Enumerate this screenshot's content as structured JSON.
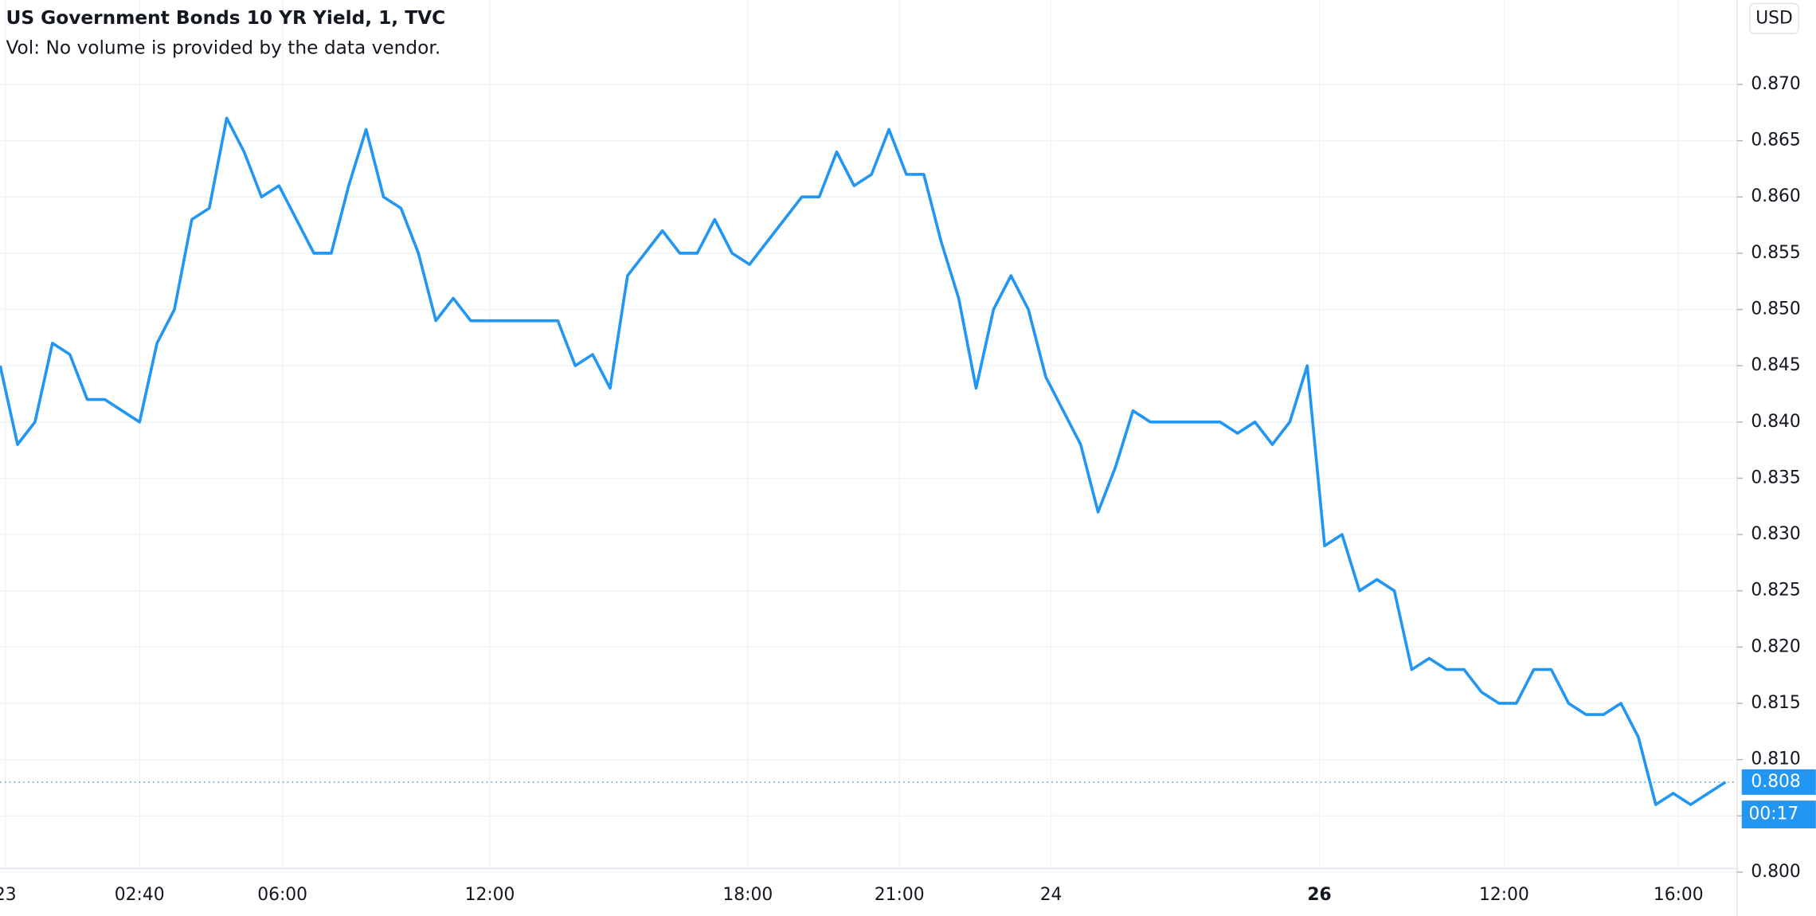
{
  "chart_data": {
    "type": "line",
    "title": "US Government Bonds 10 YR Yield, 1, TVC",
    "subtitle": "Vol: No volume is provided by the data vendor.",
    "currency": "USD",
    "series": [
      {
        "color": "#2196f3",
        "values": [
          0.845,
          0.838,
          0.84,
          0.847,
          0.846,
          0.842,
          0.842,
          0.841,
          0.84,
          0.847,
          0.85,
          0.858,
          0.859,
          0.867,
          0.864,
          0.86,
          0.861,
          0.858,
          0.855,
          0.855,
          0.861,
          0.866,
          0.86,
          0.859,
          0.855,
          0.849,
          0.851,
          0.849,
          0.849,
          0.849,
          0.849,
          0.849,
          0.849,
          0.845,
          0.846,
          0.843,
          0.853,
          0.855,
          0.857,
          0.855,
          0.855,
          0.858,
          0.855,
          0.854,
          0.856,
          0.858,
          0.86,
          0.86,
          0.864,
          0.861,
          0.862,
          0.866,
          0.862,
          0.862,
          0.856,
          0.851,
          0.843,
          0.85,
          0.853,
          0.85,
          0.844,
          0.841,
          0.838,
          0.832,
          0.836,
          0.841,
          0.84,
          0.84,
          0.84,
          0.84,
          0.84,
          0.839,
          0.84,
          0.838,
          0.84,
          0.845,
          0.829,
          0.83,
          0.825,
          0.826,
          0.825,
          0.818,
          0.819,
          0.818,
          0.818,
          0.816,
          0.815,
          0.815,
          0.818,
          0.818,
          0.815,
          0.814,
          0.814,
          0.815,
          0.812,
          0.806,
          0.807,
          0.806,
          0.807,
          0.808
        ]
      }
    ],
    "last_price": {
      "value": 0.808,
      "label": "0.808"
    },
    "countdown": "00:17",
    "xlim": [
      0,
      100
    ],
    "xticks": [
      {
        "value": 0.3,
        "label": "23"
      },
      {
        "value": 8,
        "label": "02:40"
      },
      {
        "value": 16.2,
        "label": "06:00"
      },
      {
        "value": 28.1,
        "label": "12:00"
      },
      {
        "value": 42.9,
        "label": "18:00"
      },
      {
        "value": 51.6,
        "label": "21:00"
      },
      {
        "value": 60.3,
        "label": "24"
      },
      {
        "value": 75.7,
        "label": "26"
      },
      {
        "value": 86.3,
        "label": "12:00"
      },
      {
        "value": 96.3,
        "label": "16:00"
      }
    ],
    "ylim": [
      0.7961,
      0.8775
    ],
    "yticks": [
      {
        "value": 0.8,
        "label": "0.800"
      },
      0.805,
      {
        "value": 0.81,
        "label": "0.810"
      },
      0.815,
      {
        "value": 0.82,
        "label": "0.820"
      },
      0.825,
      {
        "value": 0.83,
        "label": "0.830"
      },
      0.835,
      {
        "value": 0.84,
        "label": "0.840"
      },
      0.845,
      {
        "value": 0.85,
        "label": "0.850"
      },
      0.855,
      {
        "value": 0.86,
        "label": "0.860"
      },
      0.865,
      {
        "value": 0.87,
        "label": "0.870"
      }
    ],
    "grid": true
  }
}
